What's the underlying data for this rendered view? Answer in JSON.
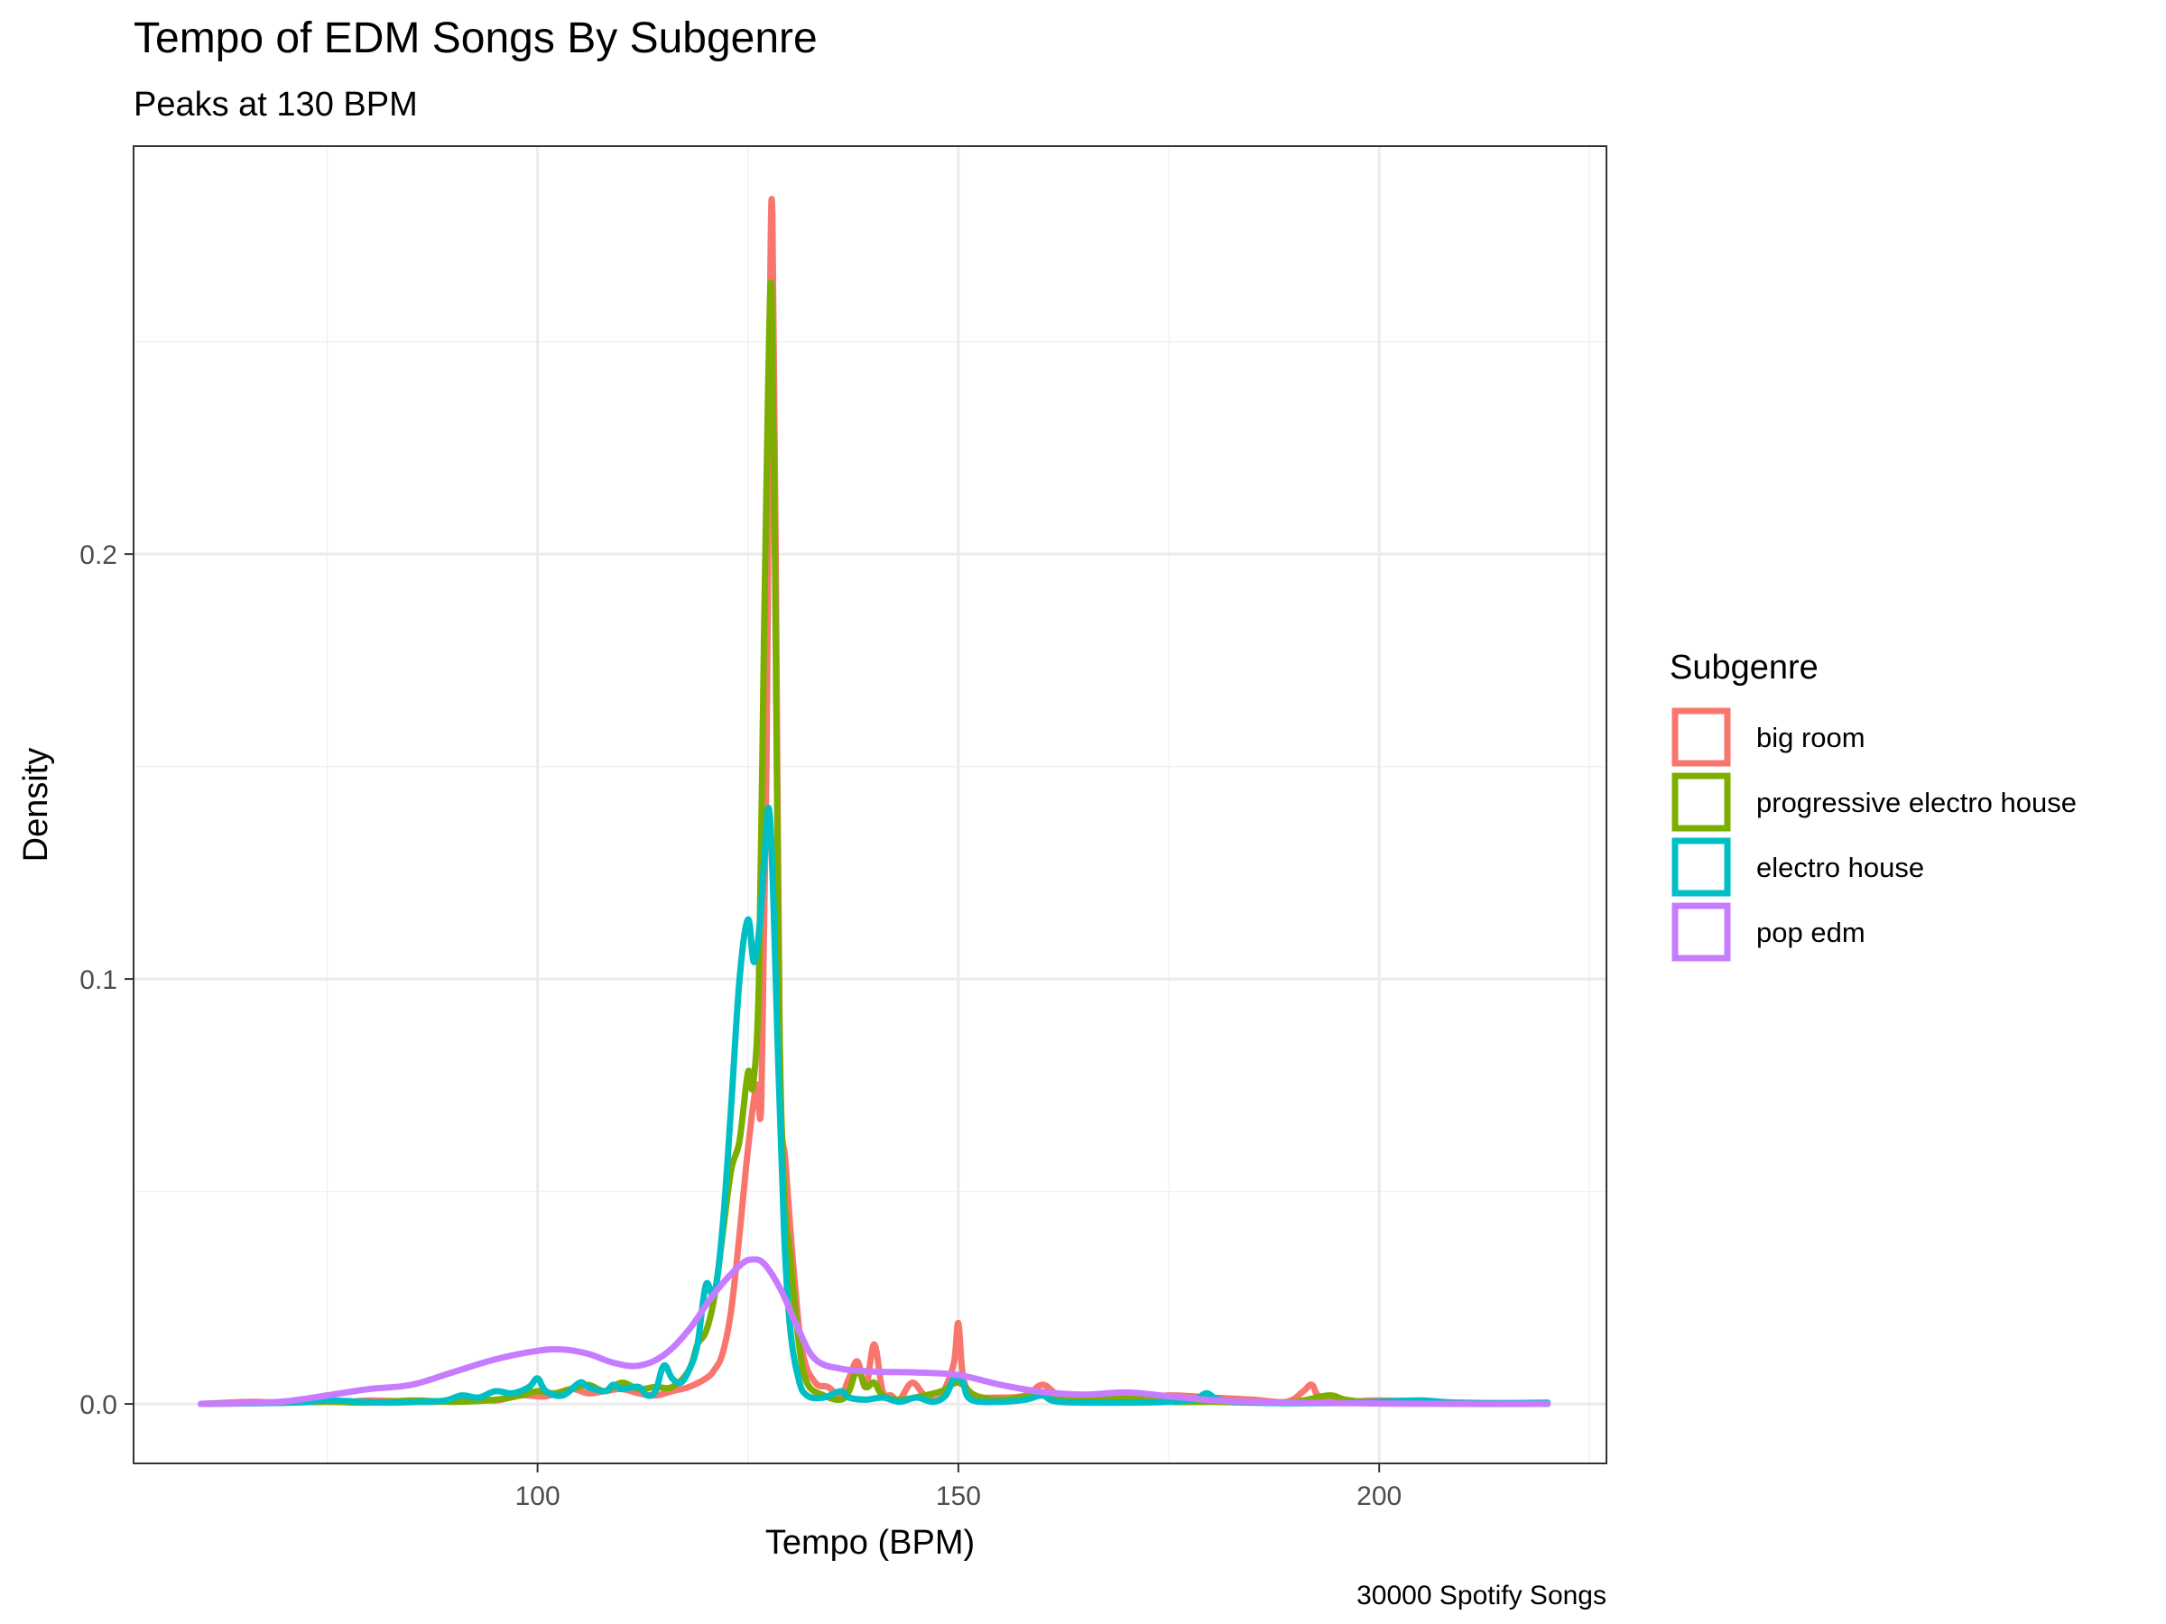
{
  "chart_data": {
    "type": "line",
    "title": "Tempo of EDM Songs By Subgenre",
    "subtitle": "Peaks at 130 BPM",
    "xlabel": "Tempo (BPM)",
    "ylabel": "Density",
    "caption": "30000 Spotify Songs",
    "xlim": [
      52,
      227
    ],
    "ylim": [
      -0.014,
      0.296
    ],
    "x_ticks": [
      100,
      150,
      200
    ],
    "x_tick_labels": [
      "100",
      "150",
      "200"
    ],
    "y_ticks": [
      0.0,
      0.1,
      0.2
    ],
    "y_tick_labels": [
      "0.0",
      "0.1",
      "0.2"
    ],
    "x_minor_ticks": [
      75,
      125,
      175,
      225
    ],
    "y_minor_ticks": [
      0.05,
      0.15,
      0.25
    ],
    "grid": true,
    "legend": {
      "title": "Subgenre",
      "position": "right"
    },
    "series": [
      {
        "name": "big room",
        "color": "#F8766D",
        "points": [
          [
            60,
            0
          ],
          [
            66,
            0.0005
          ],
          [
            70,
            0.0003
          ],
          [
            74,
            0.0012
          ],
          [
            77,
            0.0005
          ],
          [
            80,
            0.0008
          ],
          [
            84,
            0.0006
          ],
          [
            88,
            0.0005
          ],
          [
            92,
            0.0012
          ],
          [
            95,
            0.0008
          ],
          [
            98,
            0.002
          ],
          [
            101,
            0.0018
          ],
          [
            104,
            0.0035
          ],
          [
            106,
            0.0025
          ],
          [
            108,
            0.003
          ],
          [
            110,
            0.0035
          ],
          [
            112,
            0.0025
          ],
          [
            114,
            0.002
          ],
          [
            116,
            0.003
          ],
          [
            118,
            0.004
          ],
          [
            120,
            0.006
          ],
          [
            121,
            0.008
          ],
          [
            122,
            0.012
          ],
          [
            123,
            0.022
          ],
          [
            124,
            0.04
          ],
          [
            125,
            0.06
          ],
          [
            126,
            0.075
          ],
          [
            126.6,
            0.072
          ],
          [
            127.2,
            0.15
          ],
          [
            127.6,
            0.255
          ],
          [
            127.9,
            0.28
          ],
          [
            128.3,
            0.2
          ],
          [
            128.8,
            0.08
          ],
          [
            129.5,
            0.056
          ],
          [
            130.5,
            0.03
          ],
          [
            131.5,
            0.012
          ],
          [
            133,
            0.005
          ],
          [
            134.5,
            0.004
          ],
          [
            136,
            0.002
          ],
          [
            137,
            0.006
          ],
          [
            138,
            0.01
          ],
          [
            139,
            0.004
          ],
          [
            140,
            0.014
          ],
          [
            141,
            0.003
          ],
          [
            142,
            0.002
          ],
          [
            143,
            0.001
          ],
          [
            144.5,
            0.005
          ],
          [
            146,
            0.002
          ],
          [
            147.5,
            0.001
          ],
          [
            148.5,
            0.004
          ],
          [
            149.5,
            0.01
          ],
          [
            150,
            0.019
          ],
          [
            150.6,
            0.006
          ],
          [
            152,
            0.002
          ],
          [
            155,
            0.0015
          ],
          [
            158,
            0.002
          ],
          [
            160,
            0.0045
          ],
          [
            162,
            0.002
          ],
          [
            165,
            0.0015
          ],
          [
            170,
            0.001
          ],
          [
            175,
            0.002
          ],
          [
            180,
            0.0015
          ],
          [
            185,
            0.001
          ],
          [
            189,
            0.0005
          ],
          [
            191,
            0.003
          ],
          [
            192,
            0.0045
          ],
          [
            193,
            0.0015
          ],
          [
            196,
            0.0005
          ],
          [
            200,
            0.0008
          ],
          [
            210,
            0.0003
          ],
          [
            220,
            0
          ]
        ]
      },
      {
        "name": "progressive electro house",
        "color": "#7CAE00",
        "points": [
          [
            60,
            0
          ],
          [
            70,
            0.0003
          ],
          [
            75,
            0.0005
          ],
          [
            80,
            0.0003
          ],
          [
            85,
            0.0008
          ],
          [
            90,
            0.0005
          ],
          [
            95,
            0.001
          ],
          [
            98,
            0.002
          ],
          [
            100,
            0.003
          ],
          [
            102,
            0.0025
          ],
          [
            104,
            0.0035
          ],
          [
            106,
            0.0045
          ],
          [
            108,
            0.003
          ],
          [
            110,
            0.005
          ],
          [
            112,
            0.0035
          ],
          [
            114,
            0.004
          ],
          [
            116,
            0.004
          ],
          [
            118,
            0.008
          ],
          [
            119,
            0.014
          ],
          [
            120,
            0.017
          ],
          [
            121,
            0.025
          ],
          [
            122,
            0.04
          ],
          [
            123,
            0.055
          ],
          [
            124,
            0.062
          ],
          [
            125,
            0.078
          ],
          [
            125.6,
            0.075
          ],
          [
            126.3,
            0.1
          ],
          [
            126.9,
            0.18
          ],
          [
            127.4,
            0.24
          ],
          [
            127.8,
            0.262
          ],
          [
            128.2,
            0.2
          ],
          [
            128.7,
            0.095
          ],
          [
            129.3,
            0.05
          ],
          [
            130,
            0.035
          ],
          [
            131,
            0.015
          ],
          [
            132,
            0.005
          ],
          [
            134,
            0.002
          ],
          [
            136,
            0.001
          ],
          [
            137,
            0.003
          ],
          [
            138,
            0.008
          ],
          [
            139,
            0.004
          ],
          [
            140,
            0.005
          ],
          [
            141,
            0.002
          ],
          [
            143,
            0.001
          ],
          [
            146,
            0.002
          ],
          [
            148,
            0.003
          ],
          [
            150,
            0.005
          ],
          [
            152,
            0.002
          ],
          [
            155,
            0.001
          ],
          [
            160,
            0.002
          ],
          [
            165,
            0.001
          ],
          [
            170,
            0.0015
          ],
          [
            175,
            0.0005
          ],
          [
            180,
            0.0005
          ],
          [
            185,
            0.0003
          ],
          [
            190,
            0.0005
          ],
          [
            194,
            0.002
          ],
          [
            196,
            0.001
          ],
          [
            200,
            0.0003
          ],
          [
            210,
            0.0001
          ],
          [
            220,
            0
          ]
        ]
      },
      {
        "name": "electro house",
        "color": "#00BFC4",
        "points": [
          [
            60,
            0
          ],
          [
            68,
            0.0002
          ],
          [
            72,
            0.0004
          ],
          [
            75,
            0.0008
          ],
          [
            78,
            0.0006
          ],
          [
            82,
            0.0003
          ],
          [
            86,
            0.0005
          ],
          [
            89,
            0.0008
          ],
          [
            91,
            0.002
          ],
          [
            93,
            0.0015
          ],
          [
            95,
            0.003
          ],
          [
            97,
            0.0025
          ],
          [
            99,
            0.004
          ],
          [
            100,
            0.006
          ],
          [
            101,
            0.003
          ],
          [
            103,
            0.002
          ],
          [
            105,
            0.005
          ],
          [
            106,
            0.004
          ],
          [
            108,
            0.003
          ],
          [
            109,
            0.0045
          ],
          [
            110,
            0.0035
          ],
          [
            112,
            0.004
          ],
          [
            113,
            0.002
          ],
          [
            114,
            0.003
          ],
          [
            115,
            0.009
          ],
          [
            116,
            0.006
          ],
          [
            117,
            0.005
          ],
          [
            118,
            0.008
          ],
          [
            119,
            0.014
          ],
          [
            120,
            0.028
          ],
          [
            121,
            0.026
          ],
          [
            122,
            0.042
          ],
          [
            123,
            0.07
          ],
          [
            124,
            0.1
          ],
          [
            125,
            0.114
          ],
          [
            125.7,
            0.104
          ],
          [
            126.4,
            0.113
          ],
          [
            127,
            0.13
          ],
          [
            127.5,
            0.14
          ],
          [
            128,
            0.12
          ],
          [
            128.6,
            0.08
          ],
          [
            129.3,
            0.04
          ],
          [
            130,
            0.018
          ],
          [
            131,
            0.006
          ],
          [
            132,
            0.002
          ],
          [
            134,
            0.0015
          ],
          [
            136,
            0.003
          ],
          [
            137,
            0.0015
          ],
          [
            139,
            0.001
          ],
          [
            141,
            0.0015
          ],
          [
            143,
            0.0005
          ],
          [
            145,
            0.0015
          ],
          [
            147,
            0.0005
          ],
          [
            148.5,
            0.002
          ],
          [
            149.5,
            0.006
          ],
          [
            150.5,
            0.005
          ],
          [
            151.5,
            0.001
          ],
          [
            155,
            0.0005
          ],
          [
            158,
            0.001
          ],
          [
            160,
            0.002
          ],
          [
            162,
            0.0005
          ],
          [
            170,
            0.0003
          ],
          [
            175,
            0.0005
          ],
          [
            178,
            0.001
          ],
          [
            179.5,
            0.0025
          ],
          [
            181,
            0.001
          ],
          [
            185,
            0.0003
          ],
          [
            195,
            0.0002
          ],
          [
            200,
            0.0005
          ],
          [
            205,
            0.0008
          ],
          [
            210,
            0.0002
          ],
          [
            220,
            0.0003
          ]
        ]
      },
      {
        "name": "pop edm",
        "color": "#C77CFF",
        "points": [
          [
            60,
            0
          ],
          [
            65,
            0.0002
          ],
          [
            70,
            0.0006
          ],
          [
            75,
            0.002
          ],
          [
            80,
            0.0035
          ],
          [
            85,
            0.0045
          ],
          [
            90,
            0.0075
          ],
          [
            95,
            0.0105
          ],
          [
            100,
            0.0125
          ],
          [
            103,
            0.0128
          ],
          [
            106,
            0.0118
          ],
          [
            109,
            0.0097
          ],
          [
            112,
            0.009
          ],
          [
            115,
            0.0115
          ],
          [
            118,
            0.0175
          ],
          [
            121,
            0.026
          ],
          [
            124,
            0.0325
          ],
          [
            125.5,
            0.034
          ],
          [
            127,
            0.0328
          ],
          [
            129,
            0.0265
          ],
          [
            131,
            0.0175
          ],
          [
            133,
            0.0105
          ],
          [
            136,
            0.0083
          ],
          [
            140,
            0.0076
          ],
          [
            145,
            0.0074
          ],
          [
            150,
            0.0068
          ],
          [
            155,
            0.0045
          ],
          [
            160,
            0.0028
          ],
          [
            165,
            0.0022
          ],
          [
            170,
            0.0027
          ],
          [
            175,
            0.0018
          ],
          [
            180,
            0.0009
          ],
          [
            185,
            0.0005
          ],
          [
            190,
            0.0003
          ],
          [
            200,
            0.0001
          ],
          [
            210,
            0
          ],
          [
            220,
            0
          ]
        ]
      }
    ]
  }
}
